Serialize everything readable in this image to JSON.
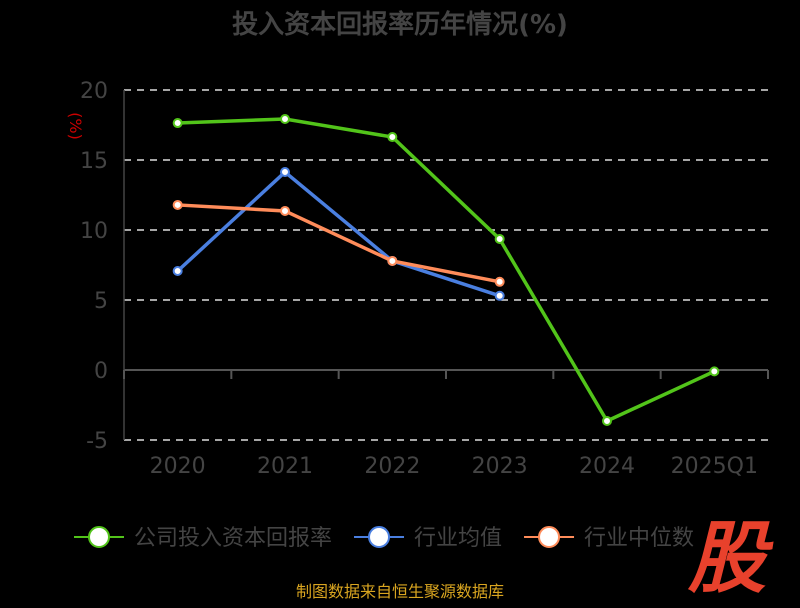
{
  "chart_data": {
    "type": "line",
    "title": "投入资本回报率历年情况(%)",
    "ylabel": "(%)",
    "categories": [
      "2020",
      "2021",
      "2022",
      "2023",
      "2024",
      "2025Q1"
    ],
    "ylim": [
      -5,
      20
    ],
    "yticks": [
      -5,
      0,
      5,
      10,
      15,
      20
    ],
    "grid": true,
    "legend_placement": "bottom",
    "series": [
      {
        "name": "公司投入资本回报率",
        "color": "#52c41a",
        "values": [
          17.64,
          17.93,
          16.64,
          9.36,
          -3.64,
          -0.1
        ]
      },
      {
        "name": "行业均值",
        "color": "#4a7fe0",
        "values": [
          7.07,
          14.14,
          7.79,
          5.3,
          null,
          null
        ]
      },
      {
        "name": "行业中位数",
        "color": "#ff8c5a",
        "values": [
          11.79,
          11.36,
          7.79,
          6.3,
          null,
          null
        ]
      }
    ]
  },
  "source": "制图数据来自恒生聚源数据库",
  "logo_text": "股"
}
